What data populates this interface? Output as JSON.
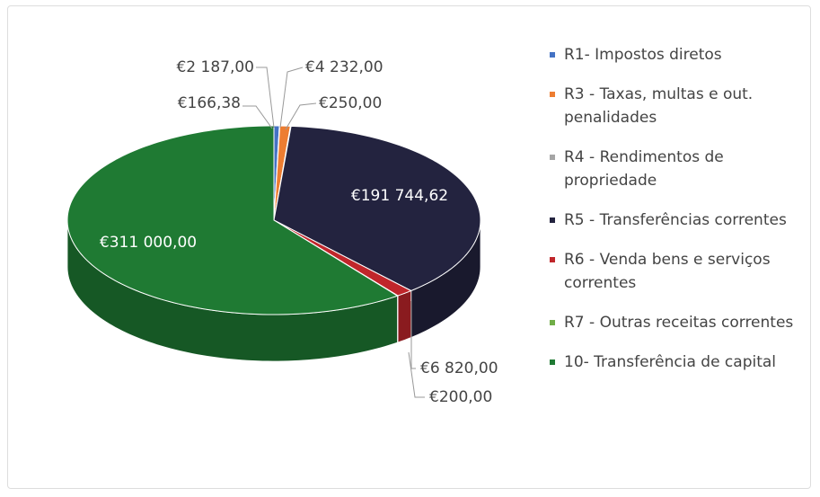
{
  "chart_data": {
    "type": "pie3d",
    "categories": [
      "R1- Impostos diretos",
      null,
      "R3 - Taxas, multas e out. penalidades",
      "R4 - Rendimentos de propriedade",
      "R5 - Transferências correntes",
      "R6 - Venda bens e serviços correntes",
      "R7 - Outras receitas correntes",
      "10- Transferência de capital"
    ],
    "values": [
      2187,
      166.38,
      4232,
      250,
      191744.62,
      6820,
      200,
      311000
    ],
    "value_labels": [
      "€2 187,00",
      "€166,38",
      "€4 232,00",
      "€250,00",
      "€191 744,62",
      "€6 820,00",
      "€200,00",
      "€311 000,00"
    ],
    "colors": [
      "#4472c4",
      "#5b9bd5",
      "#ed7d31",
      "#a5a5a5",
      "#23233f",
      "#c0262b",
      "#70ad47",
      "#1f7a33"
    ],
    "legend": "right"
  }
}
